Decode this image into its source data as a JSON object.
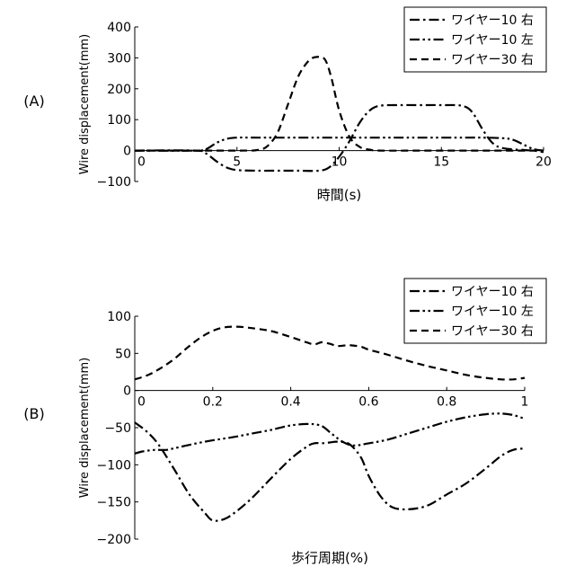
{
  "chart_data": [
    {
      "panel_label": "(A)",
      "type": "line",
      "xlabel": "時間(s)",
      "ylabel": "Wire displacement(mm)",
      "xlim": [
        0,
        20
      ],
      "ylim": [
        -100,
        400
      ],
      "xticks": [
        "0",
        "5",
        "10",
        "15",
        "20"
      ],
      "yticks": [
        "400",
        "300",
        "200",
        "100",
        "0",
        "−100"
      ],
      "legend": "top-right",
      "series": [
        {
          "name": "ワイヤー10 右",
          "style": "dash-dot",
          "x": [
            0,
            3,
            3.5,
            4,
            4.5,
            5,
            6,
            7,
            8,
            9,
            9.5,
            10,
            10.5,
            11,
            11.5,
            12,
            13,
            14,
            15,
            16,
            16.5,
            17,
            17.5,
            18,
            19,
            19.5,
            20
          ],
          "y": [
            0,
            0,
            -10,
            -35,
            -55,
            -63,
            -65,
            -65,
            -65,
            -65,
            -55,
            -20,
            30,
            90,
            130,
            145,
            147,
            147,
            147,
            145,
            125,
            70,
            25,
            8,
            2,
            0,
            -5
          ]
        },
        {
          "name": "ワイヤー10 左",
          "style": "dash-dot-dot",
          "x": [
            0,
            3,
            3.5,
            4,
            4.5,
            5,
            6,
            8,
            10,
            12,
            14,
            16,
            17,
            18,
            18.5,
            19,
            19.5,
            20
          ],
          "y": [
            0,
            0,
            5,
            25,
            38,
            42,
            42,
            42,
            42,
            42,
            42,
            42,
            42,
            40,
            35,
            20,
            5,
            0
          ]
        },
        {
          "name": "ワイヤー30 右",
          "style": "dashed",
          "x": [
            0,
            5,
            6,
            6.5,
            7,
            7.5,
            8,
            8.5,
            8.9,
            9.3,
            9.6,
            10,
            10.5,
            11,
            11.5,
            12,
            14,
            16,
            18,
            20
          ],
          "y": [
            0,
            0,
            2,
            15,
            60,
            150,
            240,
            290,
            303,
            295,
            240,
            130,
            45,
            12,
            3,
            0,
            0,
            0,
            0,
            0
          ]
        }
      ]
    },
    {
      "panel_label": "(B)",
      "type": "line",
      "xlabel": "歩行周期(%)",
      "ylabel": "Wire displacement(mm)",
      "xlim": [
        0,
        1
      ],
      "ylim": [
        -200,
        100
      ],
      "xticks": [
        "0",
        "0.2",
        "0.4",
        "0.6",
        "0.8",
        "1"
      ],
      "yticks": [
        "100",
        "50",
        "0",
        "−50",
        "−100",
        "−150",
        "−200"
      ],
      "legend": "top-right",
      "series": [
        {
          "name": "ワイヤー10 右",
          "style": "dash-dot",
          "x": [
            0,
            0.03,
            0.06,
            0.1,
            0.14,
            0.18,
            0.2,
            0.23,
            0.26,
            0.3,
            0.35,
            0.4,
            0.44,
            0.46,
            0.48,
            0.5,
            0.52,
            0.55,
            0.58,
            0.6,
            0.63,
            0.66,
            0.7,
            0.75,
            0.8,
            0.85,
            0.9,
            0.94,
            0.97,
            1.0
          ],
          "y": [
            -43,
            -55,
            -72,
            -105,
            -140,
            -165,
            -175,
            -173,
            -163,
            -145,
            -118,
            -92,
            -76,
            -71,
            -71,
            -70,
            -69,
            -72,
            -90,
            -115,
            -142,
            -157,
            -160,
            -155,
            -140,
            -125,
            -105,
            -88,
            -80,
            -78
          ]
        },
        {
          "name": "ワイヤー10 左",
          "style": "dash-dot-dot",
          "x": [
            0,
            0.02,
            0.05,
            0.08,
            0.1,
            0.15,
            0.2,
            0.25,
            0.3,
            0.35,
            0.4,
            0.45,
            0.48,
            0.5,
            0.53,
            0.56,
            0.6,
            0.65,
            0.7,
            0.75,
            0.8,
            0.85,
            0.9,
            0.94,
            0.97,
            1.0
          ],
          "y": [
            -85,
            -82,
            -80,
            -80,
            -78,
            -72,
            -67,
            -63,
            -58,
            -53,
            -47,
            -45,
            -48,
            -56,
            -68,
            -74,
            -71,
            -66,
            -58,
            -50,
            -42,
            -36,
            -32,
            -31,
            -33,
            -38
          ]
        },
        {
          "name": "ワイヤー30 右",
          "style": "dashed",
          "x": [
            0,
            0.03,
            0.06,
            0.1,
            0.14,
            0.18,
            0.22,
            0.26,
            0.3,
            0.35,
            0.4,
            0.44,
            0.46,
            0.48,
            0.5,
            0.52,
            0.55,
            0.58,
            0.6,
            0.65,
            0.7,
            0.75,
            0.8,
            0.85,
            0.9,
            0.94,
            0.97,
            1.0
          ],
          "y": [
            15,
            20,
            28,
            42,
            60,
            75,
            84,
            86,
            84,
            80,
            72,
            65,
            62,
            65,
            63,
            60,
            61,
            59,
            55,
            48,
            40,
            33,
            27,
            21,
            17,
            15,
            15,
            17
          ]
        }
      ]
    }
  ]
}
